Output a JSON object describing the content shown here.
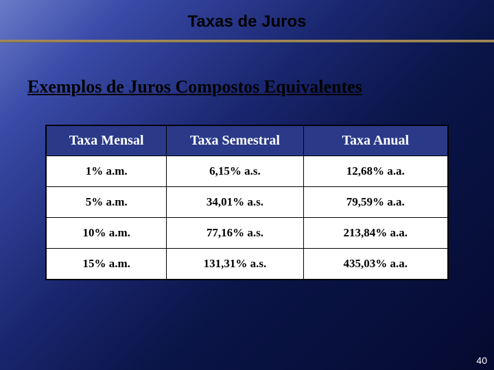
{
  "slide": {
    "title": "Taxas de Juros",
    "subtitle": "Exemplos de Juros Compostos Equivalentes",
    "page_number": "40",
    "background_gradient": [
      "#6a7bc8",
      "#3a4ba8",
      "#1a2770",
      "#0a1548",
      "#050a30"
    ],
    "rule_color": "#a08858"
  },
  "table": {
    "header_bg": "#2a3a88",
    "header_fg": "#ffffff",
    "cell_bg": "#ffffff",
    "cell_fg": "#000000",
    "border_color": "#000000",
    "header_fontsize": 20,
    "cell_fontsize": 17,
    "columns": [
      "Taxa Mensal",
      "Taxa Semestral",
      "Taxa Anual"
    ],
    "rows": [
      [
        "1% a.m.",
        "6,15% a.s.",
        "12,68% a.a."
      ],
      [
        "5% a.m.",
        "34,01% a.s.",
        "79,59% a.a."
      ],
      [
        "10% a.m.",
        "77,16% a.s.",
        "213,84% a.a."
      ],
      [
        "15% a.m.",
        "131,31% a.s.",
        "435,03% a.a."
      ]
    ]
  }
}
